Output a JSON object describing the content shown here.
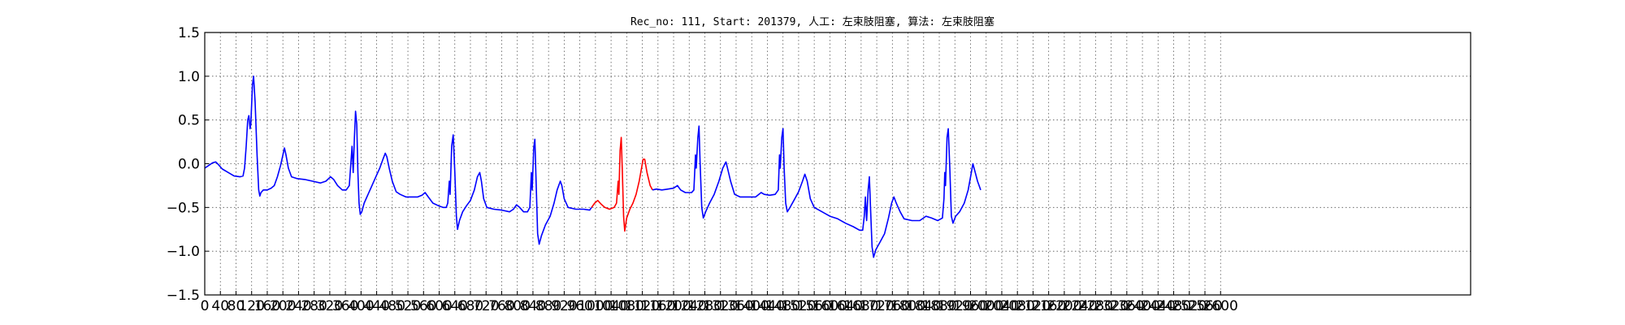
{
  "chart_data": {
    "type": "line",
    "title": "Rec_no: 111, Start: 201379, 人工: 左束肢阻塞, 算法: 左束肢阻塞",
    "xlabel": "",
    "ylabel": "",
    "xlim": [
      0,
      3240
    ],
    "ylim": [
      -1.5,
      1.5
    ],
    "grid": true,
    "x_ticks": [
      0,
      40,
      80,
      120,
      160,
      200,
      240,
      280,
      320,
      360,
      400,
      440,
      480,
      520,
      560,
      600,
      640,
      680,
      720,
      760,
      800,
      840,
      880,
      920,
      960,
      1000,
      1040,
      1080,
      1120,
      1160,
      1200,
      1240,
      1280,
      1320,
      1360,
      1400,
      1440,
      1480,
      1520,
      1560,
      1600,
      1640,
      1680,
      1720,
      1760,
      1800,
      1840,
      1880,
      1920,
      1960,
      2000,
      2040,
      2080,
      2120,
      2160,
      2200,
      2240,
      2280,
      2320,
      2360,
      2400,
      2440,
      2480,
      2520,
      2560,
      2600
    ],
    "y_ticks": [
      "1.5",
      "1.0",
      "0.5",
      "0.0",
      "−0.5",
      "−1.0",
      "−1.5"
    ],
    "y_tick_values": [
      1.5,
      1.0,
      0.5,
      0.0,
      -0.5,
      -1.0,
      -1.5
    ],
    "series": [
      {
        "color": "#0000ff",
        "points": [
          [
            0,
            -0.05
          ],
          [
            10,
            -0.02
          ],
          [
            20,
            0.01
          ],
          [
            28,
            0.02
          ],
          [
            35,
            -0.01
          ],
          [
            45,
            -0.06
          ],
          [
            60,
            -0.1
          ],
          [
            75,
            -0.14
          ],
          [
            90,
            -0.15
          ],
          [
            98,
            -0.14
          ],
          [
            102,
            -0.05
          ],
          [
            106,
            0.2
          ],
          [
            110,
            0.5
          ],
          [
            113,
            0.55
          ],
          [
            116,
            0.4
          ],
          [
            118,
            0.45
          ],
          [
            122,
            0.9
          ],
          [
            125,
            1.0
          ],
          [
            129,
            0.7
          ],
          [
            134,
            0.1
          ],
          [
            138,
            -0.3
          ],
          [
            141,
            -0.37
          ],
          [
            144,
            -0.33
          ],
          [
            150,
            -0.3
          ],
          [
            160,
            -0.3
          ],
          [
            170,
            -0.28
          ],
          [
            178,
            -0.25
          ],
          [
            186,
            -0.15
          ],
          [
            194,
            -0.02
          ],
          [
            200,
            0.1
          ],
          [
            204,
            0.18
          ],
          [
            208,
            0.1
          ],
          [
            214,
            -0.05
          ],
          [
            222,
            -0.15
          ],
          [
            236,
            -0.17
          ],
          [
            256,
            -0.18
          ],
          [
            276,
            -0.2
          ],
          [
            296,
            -0.22
          ],
          [
            310,
            -0.2
          ],
          [
            322,
            -0.15
          ],
          [
            330,
            -0.18
          ],
          [
            340,
            -0.25
          ],
          [
            352,
            -0.3
          ],
          [
            362,
            -0.3
          ],
          [
            370,
            -0.25
          ],
          [
            374,
            0.0
          ],
          [
            377,
            0.2
          ],
          [
            380,
            -0.1
          ],
          [
            383,
            0.3
          ],
          [
            386,
            0.6
          ],
          [
            389,
            0.45
          ],
          [
            392,
            -0.1
          ],
          [
            395,
            -0.45
          ],
          [
            398,
            -0.58
          ],
          [
            402,
            -0.55
          ],
          [
            408,
            -0.45
          ],
          [
            418,
            -0.35
          ],
          [
            428,
            -0.25
          ],
          [
            438,
            -0.15
          ],
          [
            448,
            -0.05
          ],
          [
            456,
            0.05
          ],
          [
            462,
            0.12
          ],
          [
            466,
            0.08
          ],
          [
            472,
            -0.05
          ],
          [
            480,
            -0.2
          ],
          [
            490,
            -0.32
          ],
          [
            500,
            -0.35
          ],
          [
            515,
            -0.38
          ],
          [
            530,
            -0.38
          ],
          [
            545,
            -0.38
          ],
          [
            556,
            -0.36
          ],
          [
            564,
            -0.33
          ],
          [
            572,
            -0.38
          ],
          [
            584,
            -0.45
          ],
          [
            598,
            -0.48
          ],
          [
            610,
            -0.5
          ],
          [
            618,
            -0.5
          ],
          [
            622,
            -0.45
          ],
          [
            626,
            -0.2
          ],
          [
            628,
            -0.35
          ],
          [
            632,
            0.2
          ],
          [
            636,
            0.33
          ],
          [
            640,
            -0.1
          ],
          [
            644,
            -0.6
          ],
          [
            647,
            -0.75
          ],
          [
            652,
            -0.65
          ],
          [
            660,
            -0.55
          ],
          [
            670,
            -0.48
          ],
          [
            680,
            -0.42
          ],
          [
            690,
            -0.3
          ],
          [
            698,
            -0.15
          ],
          [
            704,
            -0.1
          ],
          [
            708,
            -0.2
          ],
          [
            714,
            -0.4
          ],
          [
            722,
            -0.5
          ],
          [
            740,
            -0.52
          ],
          [
            760,
            -0.53
          ],
          [
            780,
            -0.55
          ],
          [
            790,
            -0.52
          ],
          [
            798,
            -0.47
          ],
          [
            806,
            -0.5
          ],
          [
            816,
            -0.55
          ],
          [
            826,
            -0.55
          ],
          [
            832,
            -0.5
          ],
          [
            836,
            -0.1
          ],
          [
            838,
            -0.3
          ],
          [
            842,
            0.18
          ],
          [
            845,
            0.28
          ],
          [
            848,
            -0.2
          ],
          [
            852,
            -0.8
          ],
          [
            856,
            -0.92
          ],
          [
            862,
            -0.82
          ],
          [
            872,
            -0.7
          ],
          [
            884,
            -0.6
          ],
          [
            894,
            -0.45
          ],
          [
            902,
            -0.3
          ],
          [
            910,
            -0.2
          ],
          [
            914,
            -0.25
          ],
          [
            920,
            -0.4
          ],
          [
            930,
            -0.5
          ],
          [
            950,
            -0.52
          ],
          [
            970,
            -0.52
          ],
          [
            985,
            -0.53
          ],
          [
            990,
            -0.5
          ]
        ]
      },
      {
        "color": "#ff0000",
        "points": [
          [
            990,
            -0.5
          ],
          [
            998,
            -0.45
          ],
          [
            1006,
            -0.42
          ],
          [
            1014,
            -0.46
          ],
          [
            1024,
            -0.5
          ],
          [
            1036,
            -0.52
          ],
          [
            1048,
            -0.5
          ],
          [
            1054,
            -0.45
          ],
          [
            1058,
            -0.2
          ],
          [
            1060,
            -0.35
          ],
          [
            1063,
            0.15
          ],
          [
            1066,
            0.3
          ],
          [
            1069,
            -0.1
          ],
          [
            1072,
            -0.6
          ],
          [
            1075,
            -0.77
          ],
          [
            1080,
            -0.62
          ],
          [
            1088,
            -0.52
          ],
          [
            1096,
            -0.45
          ],
          [
            1104,
            -0.35
          ],
          [
            1112,
            -0.2
          ],
          [
            1118,
            -0.05
          ],
          [
            1122,
            0.05
          ],
          [
            1126,
            0.05
          ],
          [
            1132,
            -0.1
          ],
          [
            1140,
            -0.25
          ],
          [
            1146,
            -0.3
          ]
        ]
      },
      {
        "color": "#0000ff",
        "points": [
          [
            1146,
            -0.3
          ],
          [
            1156,
            -0.29
          ],
          [
            1170,
            -0.3
          ],
          [
            1186,
            -0.29
          ],
          [
            1200,
            -0.28
          ],
          [
            1210,
            -0.25
          ],
          [
            1218,
            -0.3
          ],
          [
            1230,
            -0.33
          ],
          [
            1246,
            -0.33
          ],
          [
            1252,
            -0.3
          ],
          [
            1256,
            0.1
          ],
          [
            1258,
            -0.05
          ],
          [
            1262,
            0.3
          ],
          [
            1265,
            0.43
          ],
          [
            1268,
            0.0
          ],
          [
            1272,
            -0.5
          ],
          [
            1276,
            -0.62
          ],
          [
            1282,
            -0.55
          ],
          [
            1292,
            -0.45
          ],
          [
            1304,
            -0.35
          ],
          [
            1316,
            -0.2
          ],
          [
            1326,
            -0.05
          ],
          [
            1334,
            0.02
          ],
          [
            1338,
            -0.05
          ],
          [
            1346,
            -0.2
          ],
          [
            1356,
            -0.35
          ],
          [
            1370,
            -0.38
          ],
          [
            1390,
            -0.38
          ],
          [
            1410,
            -0.38
          ],
          [
            1424,
            -0.33
          ],
          [
            1432,
            -0.35
          ],
          [
            1446,
            -0.36
          ],
          [
            1460,
            -0.35
          ],
          [
            1468,
            -0.3
          ],
          [
            1471,
            0.1
          ],
          [
            1473,
            -0.05
          ],
          [
            1477,
            0.3
          ],
          [
            1480,
            0.4
          ],
          [
            1483,
            -0.05
          ],
          [
            1487,
            -0.45
          ],
          [
            1491,
            -0.55
          ],
          [
            1498,
            -0.5
          ],
          [
            1508,
            -0.42
          ],
          [
            1520,
            -0.32
          ],
          [
            1530,
            -0.2
          ],
          [
            1536,
            -0.12
          ],
          [
            1542,
            -0.2
          ],
          [
            1550,
            -0.4
          ],
          [
            1560,
            -0.5
          ],
          [
            1580,
            -0.55
          ],
          [
            1600,
            -0.6
          ],
          [
            1620,
            -0.63
          ],
          [
            1640,
            -0.68
          ],
          [
            1660,
            -0.72
          ],
          [
            1676,
            -0.76
          ],
          [
            1684,
            -0.76
          ],
          [
            1688,
            -0.6
          ],
          [
            1691,
            -0.38
          ],
          [
            1694,
            -0.65
          ],
          [
            1698,
            -0.3
          ],
          [
            1701,
            -0.15
          ],
          [
            1704,
            -0.5
          ],
          [
            1708,
            -0.95
          ],
          [
            1712,
            -1.07
          ],
          [
            1718,
            -0.98
          ],
          [
            1728,
            -0.9
          ],
          [
            1740,
            -0.8
          ],
          [
            1750,
            -0.62
          ],
          [
            1758,
            -0.45
          ],
          [
            1764,
            -0.38
          ],
          [
            1770,
            -0.45
          ],
          [
            1780,
            -0.55
          ],
          [
            1790,
            -0.63
          ],
          [
            1810,
            -0.65
          ],
          [
            1830,
            -0.65
          ],
          [
            1846,
            -0.6
          ],
          [
            1860,
            -0.62
          ],
          [
            1876,
            -0.65
          ],
          [
            1888,
            -0.62
          ],
          [
            1892,
            -0.4
          ],
          [
            1894,
            -0.1
          ],
          [
            1896,
            -0.25
          ],
          [
            1900,
            0.3
          ],
          [
            1903,
            0.4
          ],
          [
            1907,
            -0.05
          ],
          [
            1911,
            -0.6
          ],
          [
            1915,
            -0.68
          ],
          [
            1922,
            -0.6
          ],
          [
            1932,
            -0.55
          ],
          [
            1944,
            -0.45
          ],
          [
            1954,
            -0.3
          ],
          [
            1962,
            -0.1
          ],
          [
            1966,
            0.0
          ],
          [
            1972,
            -0.1
          ],
          [
            1978,
            -0.2
          ],
          [
            1986,
            -0.3
          ]
        ]
      }
    ]
  }
}
